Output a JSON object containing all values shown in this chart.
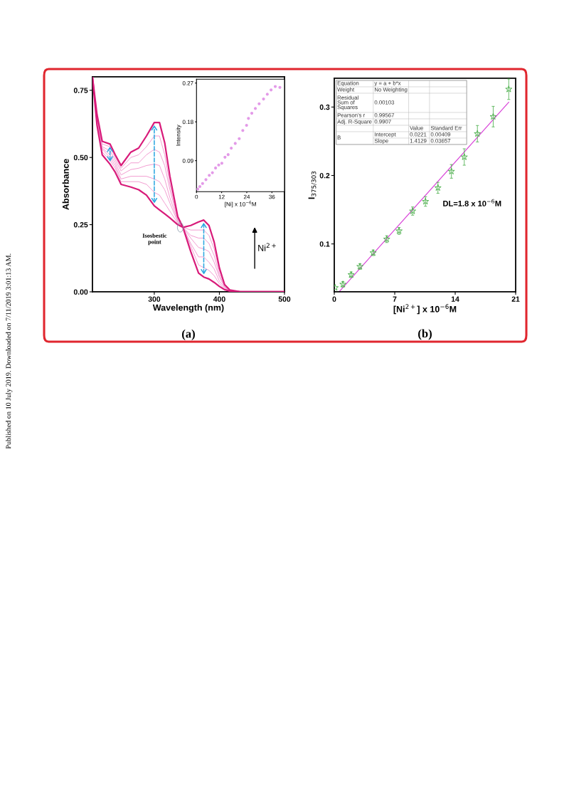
{
  "chart_data": [
    {
      "type": "line",
      "xlabel": "Wavelength (nm)",
      "ylabel": "Absorbance",
      "x": [
        205,
        212,
        220,
        232,
        240,
        249,
        264,
        276,
        288,
        300,
        308,
        316,
        324,
        336,
        344,
        356,
        368,
        376,
        384,
        392,
        400,
        408,
        416,
        432,
        500
      ],
      "series": [
        {
          "color": "#d81b7a",
          "values": [
            0.8,
            0.62,
            0.51,
            0.475,
            0.445,
            0.4,
            0.39,
            0.38,
            0.36,
            0.32,
            0.305,
            0.29,
            0.275,
            0.25,
            0.24,
            0.15,
            0.07,
            0.055,
            0.048,
            0.035,
            0.02,
            0.008,
            0.003,
            0,
            0
          ]
        },
        {
          "color": "#f29ad0",
          "values": [
            0.8,
            0.63,
            0.52,
            0.49,
            0.46,
            0.41,
            0.41,
            0.41,
            0.4,
            0.37,
            0.36,
            0.33,
            0.3,
            0.255,
            0.24,
            0.17,
            0.1,
            0.09,
            0.08,
            0.06,
            0.03,
            0.01,
            0.004,
            0,
            0
          ]
        },
        {
          "color": "#f29ad0",
          "values": [
            0.8,
            0.63,
            0.53,
            0.5,
            0.47,
            0.42,
            0.43,
            0.43,
            0.43,
            0.42,
            0.41,
            0.38,
            0.33,
            0.26,
            0.24,
            0.18,
            0.13,
            0.13,
            0.11,
            0.085,
            0.04,
            0.015,
            0.004,
            0,
            0
          ]
        },
        {
          "color": "#f29ad0",
          "values": [
            0.8,
            0.64,
            0.535,
            0.51,
            0.48,
            0.435,
            0.455,
            0.46,
            0.47,
            0.475,
            0.47,
            0.42,
            0.35,
            0.265,
            0.24,
            0.2,
            0.165,
            0.16,
            0.15,
            0.11,
            0.055,
            0.018,
            0.005,
            0,
            0
          ]
        },
        {
          "color": "#f29ad0",
          "values": [
            0.8,
            0.65,
            0.54,
            0.525,
            0.49,
            0.45,
            0.48,
            0.48,
            0.51,
            0.53,
            0.52,
            0.47,
            0.38,
            0.27,
            0.24,
            0.21,
            0.2,
            0.2,
            0.18,
            0.135,
            0.065,
            0.02,
            0.005,
            0,
            0
          ]
        },
        {
          "color": "#f29ad0",
          "values": [
            0.8,
            0.65,
            0.55,
            0.54,
            0.5,
            0.46,
            0.5,
            0.51,
            0.54,
            0.58,
            0.58,
            0.51,
            0.4,
            0.275,
            0.24,
            0.23,
            0.23,
            0.23,
            0.21,
            0.16,
            0.08,
            0.024,
            0.006,
            0,
            0
          ]
        },
        {
          "color": "#d81b7a",
          "values": [
            0.8,
            0.66,
            0.56,
            0.55,
            0.51,
            0.47,
            0.52,
            0.535,
            0.58,
            0.63,
            0.63,
            0.555,
            0.43,
            0.28,
            0.24,
            0.247,
            0.26,
            0.267,
            0.247,
            0.185,
            0.089,
            0.027,
            0.007,
            0,
            0
          ]
        }
      ],
      "xlim": [
        205,
        500
      ],
      "xticks": [
        300,
        400,
        500
      ],
      "ylim": [
        0,
        0.8
      ],
      "yticks": [
        {
          "value": 0,
          "label": "0.00"
        },
        {
          "value": 0.25,
          "label": "0.25"
        },
        {
          "value": 0.5,
          "label": "0.50"
        },
        {
          "value": 0.75,
          "label": "0.75"
        }
      ],
      "annotations": [
        {
          "text": "Isosbestic\npoint",
          "x": 340,
          "y": 0.24
        },
        "Ni$^{2+}$",
        "(a)",
        "Published on 10 July 2019. Downloaded on 7/11/2019 3:01:13 AM."
      ]
    },
    {
      "type": "scatter",
      "xlabel": "[Ni] x 10$^{−6}$M",
      "ylabel": "Intensity",
      "marker": "circle",
      "series": [
        {
          "color": "#e39ae8",
          "x": [
            0.6,
            1.6,
            2.9,
            4.5,
            6.1,
            7.6,
            9.1,
            10.6,
            12.1,
            13.6,
            15.1,
            16.6,
            18.5,
            20.4,
            22.1,
            23.9,
            24.8,
            26.4,
            28.1,
            29.9,
            32.0,
            33.8,
            35.6,
            37.6,
            39.8
          ],
          "values": [
            0.024,
            0.03,
            0.037,
            0.046,
            0.056,
            0.062,
            0.073,
            0.08,
            0.084,
            0.098,
            0.104,
            0.119,
            0.13,
            0.141,
            0.16,
            0.172,
            0.188,
            0.2,
            0.211,
            0.222,
            0.233,
            0.244,
            0.254,
            0.262,
            0.26
          ]
        }
      ],
      "xlim": [
        0,
        42
      ],
      "xticks": [
        0,
        12,
        24,
        36
      ],
      "ylim": [
        0.018,
        0.279
      ],
      "yticks": [
        0.09,
        0.18,
        0.27
      ]
    },
    {
      "type": "scatter",
      "xlabel": "[Ni$^{2+}$] x 10$^{−6}$M",
      "ylabel": "I$_{375/303}$",
      "series": [
        {
          "color": "#4cae4c",
          "marker": "star",
          "x": [
            0.1,
            1.0,
            1.95,
            2.97,
            4.5,
            6.07,
            7.5,
            9.07,
            10.56,
            12.0,
            13.56,
            15.05,
            16.57,
            18.4,
            20.2
          ],
          "values": [
            0.036,
            0.041,
            0.055,
            0.067,
            0.087,
            0.107,
            0.119,
            0.148,
            0.162,
            0.182,
            0.206,
            0.227,
            0.261,
            0.286,
            0.326
          ],
          "errors": [
            null,
            0.004,
            0.004,
            0.004,
            0.004,
            0.005,
            0.005,
            0.006,
            0.007,
            0.008,
            0.01,
            0.012,
            0.012,
            0.015,
            0.015
          ]
        },
        {
          "type": "line",
          "color": "#d946d9",
          "x": [
            0.63,
            20.2
          ],
          "values": [
            0.031,
            0.307
          ]
        }
      ],
      "xlim": [
        0,
        21
      ],
      "xticks": [
        0,
        7,
        14,
        21
      ],
      "ylim": [
        0.03,
        0.342
      ],
      "yticks": [
        0.1,
        0.2,
        0.3
      ],
      "annotations": [
        "Equation",
        "y = a + b*x",
        "Weight",
        "No Weighting",
        "Residual Sum of Squares",
        "0.00103",
        "Pearson's r",
        "0.99567",
        "Adj. R-Square",
        "0.9907",
        "Value",
        "Standard Err",
        "B",
        "Intercept",
        "0.0221",
        "0.00409",
        "Slope",
        "1.4129",
        "0.03657",
        "DL=1.8 x 10$^{−6}$M",
        "(b)"
      ]
    }
  ]
}
